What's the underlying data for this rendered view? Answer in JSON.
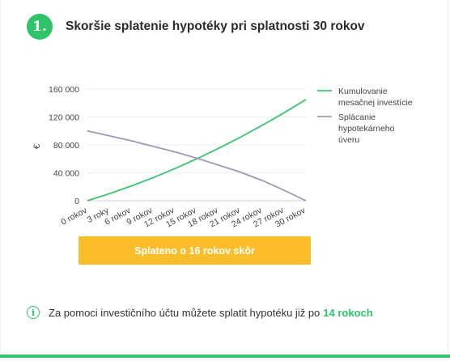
{
  "header": {
    "step_number": "1.",
    "title": "Skoršie splatenie hypotéky pri splatnosti 30 rokov"
  },
  "cta": {
    "label": "Splateno o 16 rokov skôr"
  },
  "info": {
    "icon": "info-icon",
    "text": "Za pomoci investičního účtu můžete splatit hypotéku již po",
    "highlight": "14 rokoch"
  },
  "colors": {
    "accent": "#2fc46a",
    "button": "#fcbd2b",
    "series_investment": "#3cc46e",
    "series_mortgage": "#9b9bb5"
  },
  "chart_data": {
    "type": "line",
    "title": "",
    "xlabel": "",
    "ylabel": "€",
    "x": [
      "0 rokov",
      "3 roky",
      "6 rokov",
      "9 rokov",
      "12 rokov",
      "15 rokov",
      "18 rokov",
      "21 rokov",
      "24 rokov",
      "27 rokov",
      "30 rokov"
    ],
    "yticks": [
      "0",
      "40 000",
      "80 000",
      "120 000",
      "160 000"
    ],
    "ylim": [
      0,
      160000
    ],
    "grid": true,
    "legend_position": "right",
    "series": [
      {
        "name": "Kumulovanie mesačnej investície",
        "values": [
          0,
          10000,
          21000,
          33000,
          46000,
          60000,
          75000,
          91000,
          108000,
          126000,
          145000
        ]
      },
      {
        "name": "Splácanie hypotekárneho úveru",
        "values": [
          100000,
          93000,
          86000,
          78000,
          70000,
          61000,
          51000,
          41000,
          29000,
          15000,
          0
        ]
      }
    ]
  }
}
